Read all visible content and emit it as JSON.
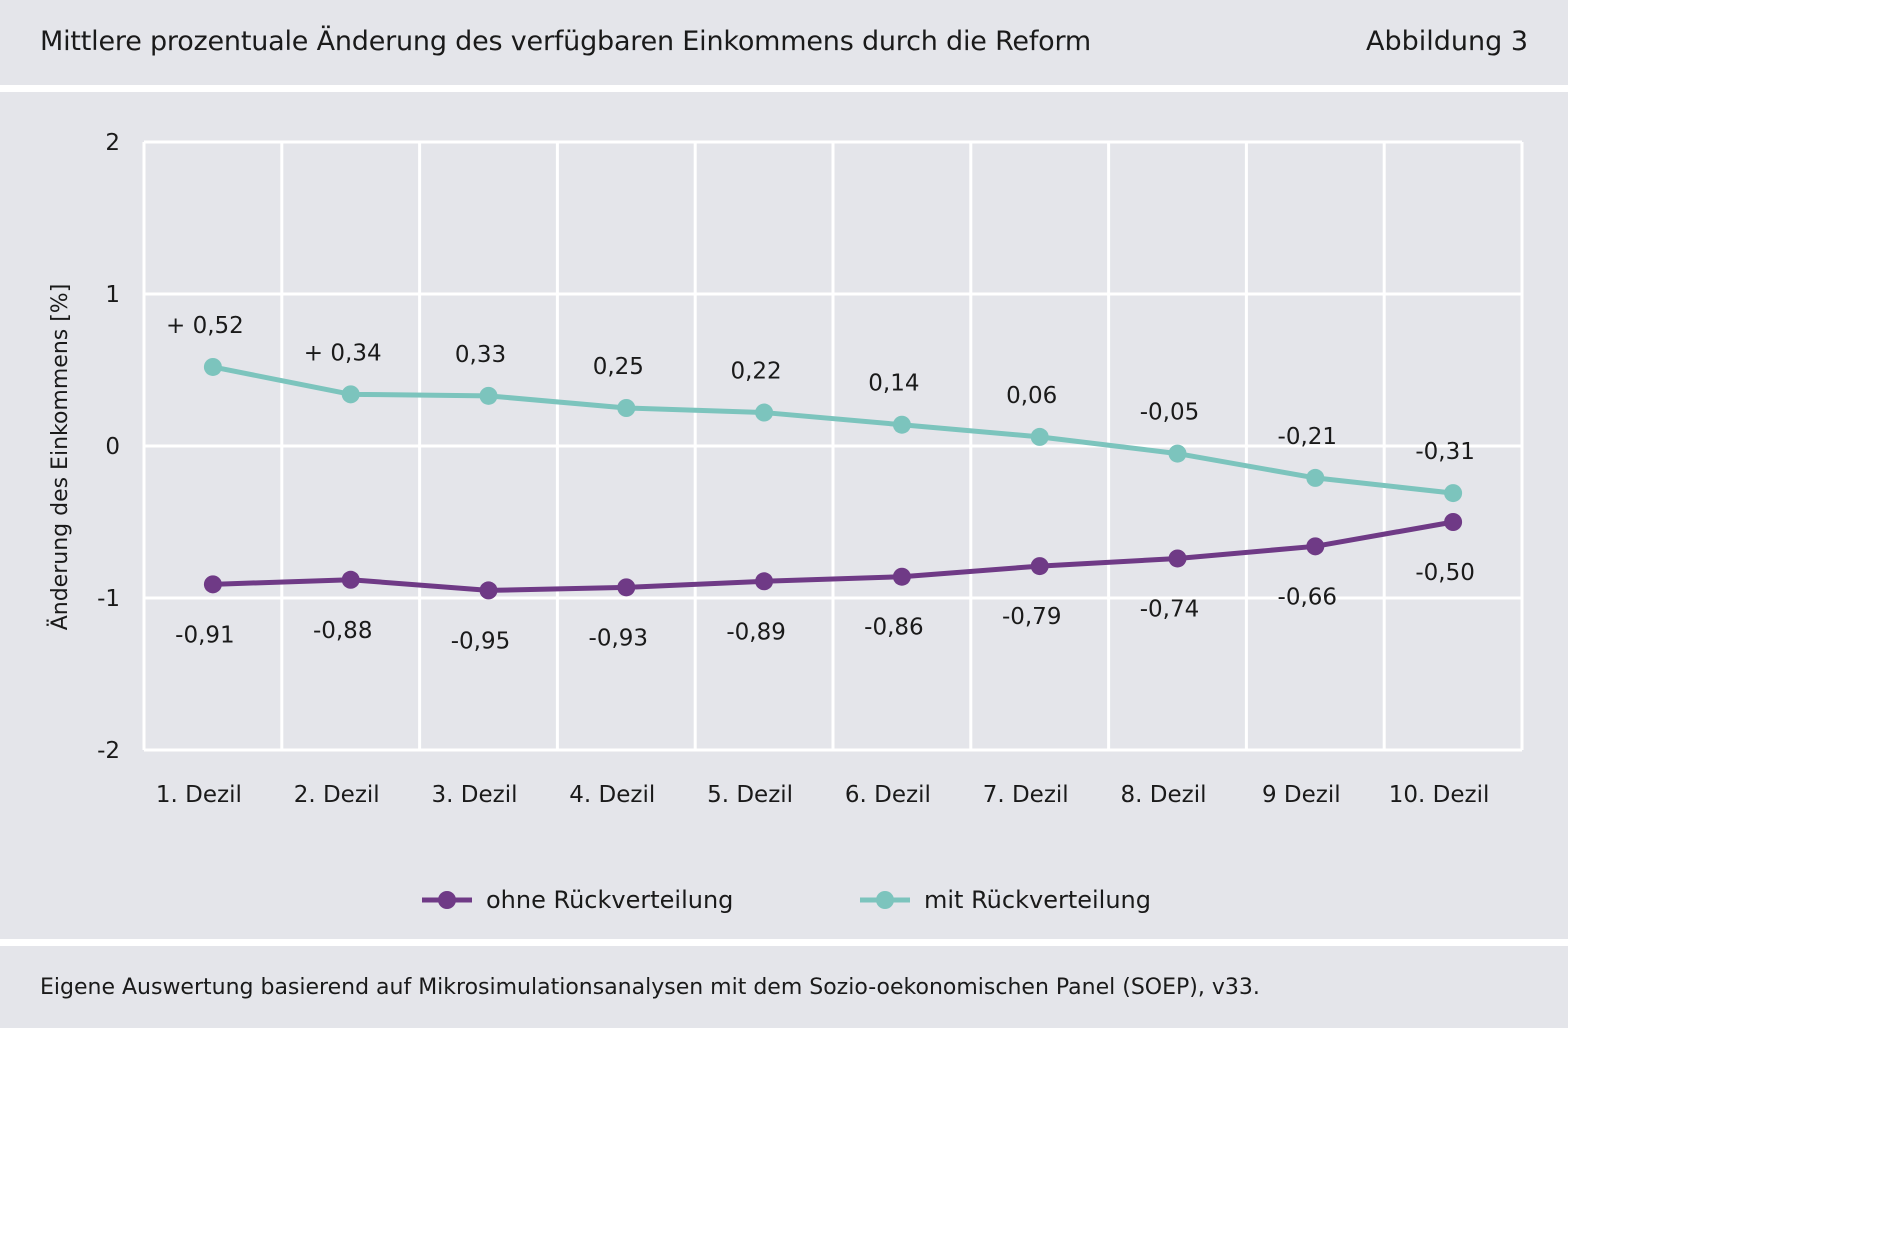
{
  "header": {
    "title": "Mittlere prozentuale Änderung des verfügbaren Einkommens durch die Reform",
    "figure_label": "Abbildung 3"
  },
  "footer": {
    "source": "Eigene Auswertung basierend auf Mikrosimulationsanalysen mit dem Sozio-oekonomischen Panel (SOEP), v33."
  },
  "colors": {
    "background": "#e4e5ea",
    "grid": "#ffffff",
    "purple": "#6f3a86",
    "teal": "#7cc4bd"
  },
  "chart_data": {
    "type": "line",
    "title": "Mittlere prozentuale Änderung des verfügbaren Einkommens durch die Reform",
    "xlabel": "",
    "ylabel": "Änderung des Einkommens [%]",
    "ylim": [
      -2,
      2
    ],
    "yticks": [
      2,
      1,
      0,
      -1,
      -2
    ],
    "ytick_labels": [
      "2",
      "1",
      "0",
      "-1",
      "-2"
    ],
    "grid": true,
    "legend_position": "bottom",
    "categories": [
      "1. Dezil",
      "2. Dezil",
      "3. Dezil",
      "4. Dezil",
      "5. Dezil",
      "6. Dezil",
      "7. Dezil",
      "8. Dezil",
      "9 Dezil",
      "10. Dezil"
    ],
    "series": [
      {
        "name": "ohne Rückverteilung",
        "color": "#6f3a86",
        "values": [
          -0.91,
          -0.88,
          -0.95,
          -0.93,
          -0.89,
          -0.86,
          -0.79,
          -0.74,
          -0.66,
          -0.5
        ],
        "labels": [
          "-0,91",
          "-0,88",
          "-0,95",
          "-0,93",
          "-0,89",
          "-0,86",
          "-0,79",
          "-0,74",
          "-0,66",
          "-0,50"
        ],
        "label_position": "below"
      },
      {
        "name": "mit Rückverteilung",
        "color": "#7cc4bd",
        "values": [
          0.52,
          0.34,
          0.33,
          0.25,
          0.22,
          0.14,
          0.06,
          -0.05,
          -0.21,
          -0.31
        ],
        "labels": [
          "+ 0,52",
          "+ 0,34",
          "0,33",
          "0,25",
          "0,22",
          "0,14",
          "0,06",
          "-0,05",
          "-0,21",
          "-0,31"
        ],
        "label_position": "above"
      }
    ]
  }
}
